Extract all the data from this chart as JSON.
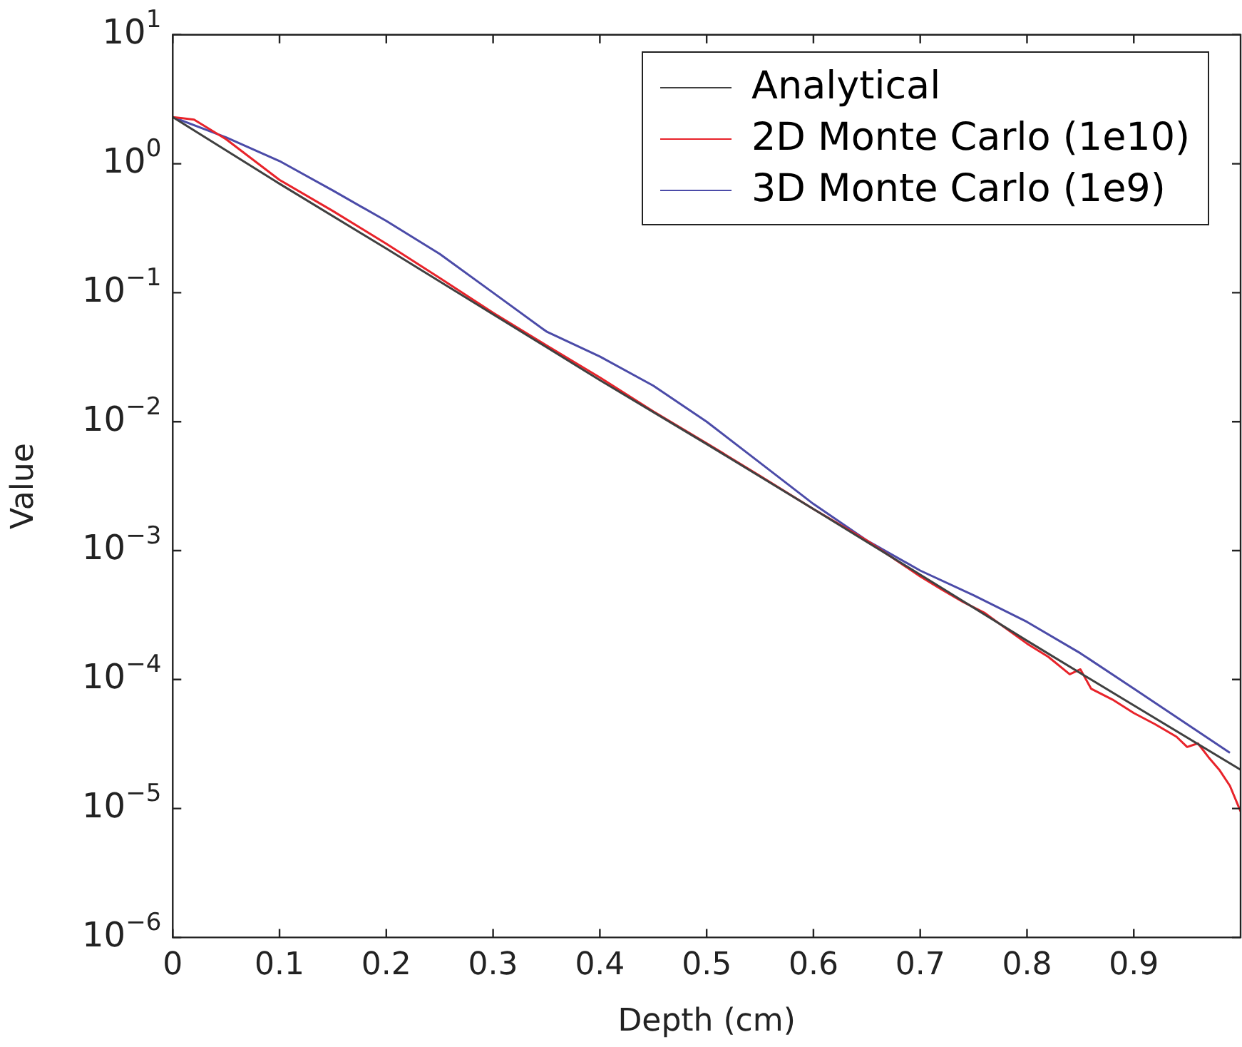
{
  "chart_data": {
    "type": "line",
    "xlabel": "Depth (cm)",
    "ylabel": "Value",
    "log": "y",
    "grid": false,
    "legend": "top right",
    "marker": "none",
    "line_style": "solid",
    "xlim": [
      0,
      1
    ],
    "xticks": [
      0,
      0.1,
      0.2,
      0.3,
      0.4,
      0.5,
      0.6,
      0.7,
      0.8,
      0.9
    ],
    "ylim": [
      1e-06,
      10
    ],
    "yticks": [
      {
        "value": 10,
        "label": "10$^{1}$"
      },
      {
        "value": 1,
        "label": "10$^{0}$"
      },
      {
        "value": 0.1,
        "label": "10$^{−1}$"
      },
      {
        "value": 0.01,
        "label": "10$^{−2}$"
      },
      {
        "value": 0.001,
        "label": "10$^{−3}$"
      },
      {
        "value": 0.0001,
        "label": "10$^{−4}$"
      },
      {
        "value": 1e-05,
        "label": "10$^{−5}$"
      },
      {
        "value": 1e-06,
        "label": "10$^{−6}$"
      }
    ],
    "series": [
      {
        "name": "Analytical",
        "color": "#404040",
        "x": [
          0,
          0.1,
          0.2,
          0.3,
          0.4,
          0.5,
          0.6,
          0.7,
          0.8,
          0.9,
          1.0
        ],
        "values": [
          2.3,
          0.7,
          0.22,
          0.068,
          0.021,
          0.0067,
          0.0021,
          0.00065,
          0.0002,
          6.3e-05,
          2e-05
        ]
      },
      {
        "name": "2D Monte Carlo (1e10)",
        "color": "#e8232a",
        "x": [
          0,
          0.02,
          0.05,
          0.1,
          0.15,
          0.2,
          0.25,
          0.3,
          0.35,
          0.4,
          0.45,
          0.5,
          0.55,
          0.6,
          0.65,
          0.7,
          0.72,
          0.74,
          0.76,
          0.78,
          0.8,
          0.82,
          0.84,
          0.85,
          0.86,
          0.88,
          0.9,
          0.92,
          0.94,
          0.95,
          0.96,
          0.97,
          0.98,
          0.99,
          1.0
        ],
        "values": [
          2.3,
          2.2,
          1.55,
          0.75,
          0.43,
          0.24,
          0.13,
          0.07,
          0.039,
          0.022,
          0.012,
          0.0068,
          0.0038,
          0.0021,
          0.0012,
          0.00063,
          0.0005,
          0.0004,
          0.00033,
          0.00025,
          0.00019,
          0.00015,
          0.00011,
          0.00012,
          8.5e-05,
          7e-05,
          5.5e-05,
          4.5e-05,
          3.6e-05,
          3e-05,
          3.2e-05,
          2.5e-05,
          2e-05,
          1.5e-05,
          9.5e-06
        ]
      },
      {
        "name": "3D Monte Carlo (1e9)",
        "color": "#4b4ba8",
        "x": [
          0,
          0.05,
          0.1,
          0.15,
          0.2,
          0.25,
          0.3,
          0.35,
          0.4,
          0.45,
          0.5,
          0.55,
          0.6,
          0.65,
          0.7,
          0.75,
          0.8,
          0.85,
          0.9,
          0.95,
          0.99
        ],
        "values": [
          2.3,
          1.6,
          1.05,
          0.62,
          0.36,
          0.2,
          0.1,
          0.05,
          0.032,
          0.019,
          0.01,
          0.0048,
          0.0023,
          0.0012,
          0.0007,
          0.00045,
          0.00028,
          0.00016,
          8.5e-05,
          4.5e-05,
          2.7e-05
        ]
      }
    ]
  }
}
